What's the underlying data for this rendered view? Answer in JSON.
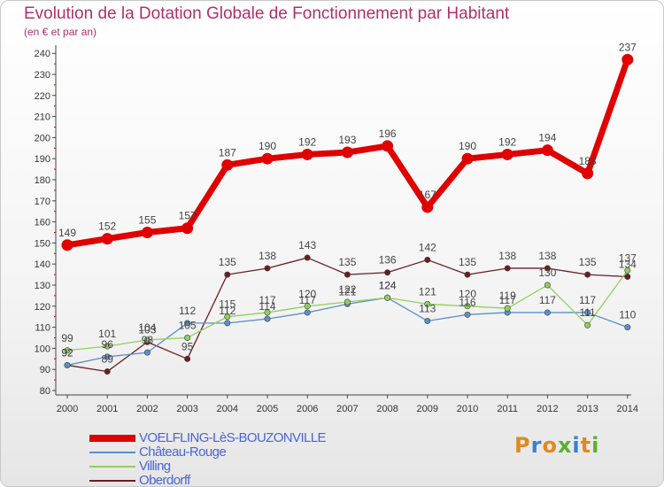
{
  "title": "Evolution de la Dotation Globale de Fonctionnement par Habitant",
  "subtitle": "(en € et par an)",
  "logo": {
    "text": "Proxiti",
    "letters": [
      {
        "ch": "P",
        "color": "#e08a1e"
      },
      {
        "ch": "r",
        "color": "#3a7fd0"
      },
      {
        "ch": "o",
        "color": "#e08a1e"
      },
      {
        "ch": "x",
        "color": "#5ab030"
      },
      {
        "ch": "i",
        "color": "#3a7fd0"
      },
      {
        "ch": "t",
        "color": "#e08a1e"
      },
      {
        "ch": "i",
        "color": "#5ab030"
      }
    ]
  },
  "chart_data": {
    "type": "line",
    "title": "Evolution de la Dotation Globale de Fonctionnement par Habitant",
    "subtitle": "(en € et par an)",
    "categories": [
      "2000",
      "2001",
      "2002",
      "2003",
      "2004",
      "2005",
      "2006",
      "2007",
      "2008",
      "2009",
      "2010",
      "2011",
      "2012",
      "2013",
      "2014"
    ],
    "ylim": [
      80,
      240
    ],
    "yticks": [
      80,
      90,
      100,
      110,
      120,
      130,
      140,
      150,
      160,
      170,
      180,
      190,
      200,
      210,
      220,
      230,
      240
    ],
    "grid": false,
    "legend_position": "bottom-left",
    "series": [
      {
        "name": "VOELFLING-LèS-BOUZONVILLE",
        "color": "#e00000",
        "values": [
          149,
          152,
          155,
          157,
          187,
          190,
          192,
          193,
          196,
          167,
          190,
          192,
          194,
          183,
          237
        ]
      },
      {
        "name": "Château-Rouge",
        "color": "#5a8fc8",
        "values": [
          92,
          96,
          98,
          112,
          112,
          114,
          117,
          121,
          124,
          113,
          116,
          117,
          117,
          117,
          110
        ]
      },
      {
        "name": "Villing",
        "color": "#8fd05a",
        "values": [
          99,
          101,
          104,
          105,
          115,
          117,
          120,
          122,
          124,
          121,
          120,
          119,
          130,
          111,
          137
        ]
      },
      {
        "name": "Oberdorff",
        "color": "#6a1e22",
        "values": [
          92,
          89,
          103,
          95,
          135,
          138,
          143,
          135,
          136,
          142,
          135,
          138,
          138,
          135,
          134
        ]
      }
    ],
    "labels": [
      [
        149,
        152,
        155,
        157,
        187,
        190,
        192,
        193,
        196,
        167,
        190,
        192,
        194,
        183,
        237
      ],
      [
        92,
        96,
        98,
        112,
        112,
        114,
        117,
        121,
        124,
        113,
        116,
        117,
        117,
        117,
        110
      ],
      [
        99,
        101,
        104,
        105,
        115,
        117,
        120,
        122,
        124,
        121,
        120,
        119,
        130,
        111,
        137
      ],
      [
        92,
        89,
        103,
        95,
        135,
        138,
        143,
        135,
        136,
        142,
        135,
        138,
        138,
        135,
        134
      ]
    ]
  }
}
